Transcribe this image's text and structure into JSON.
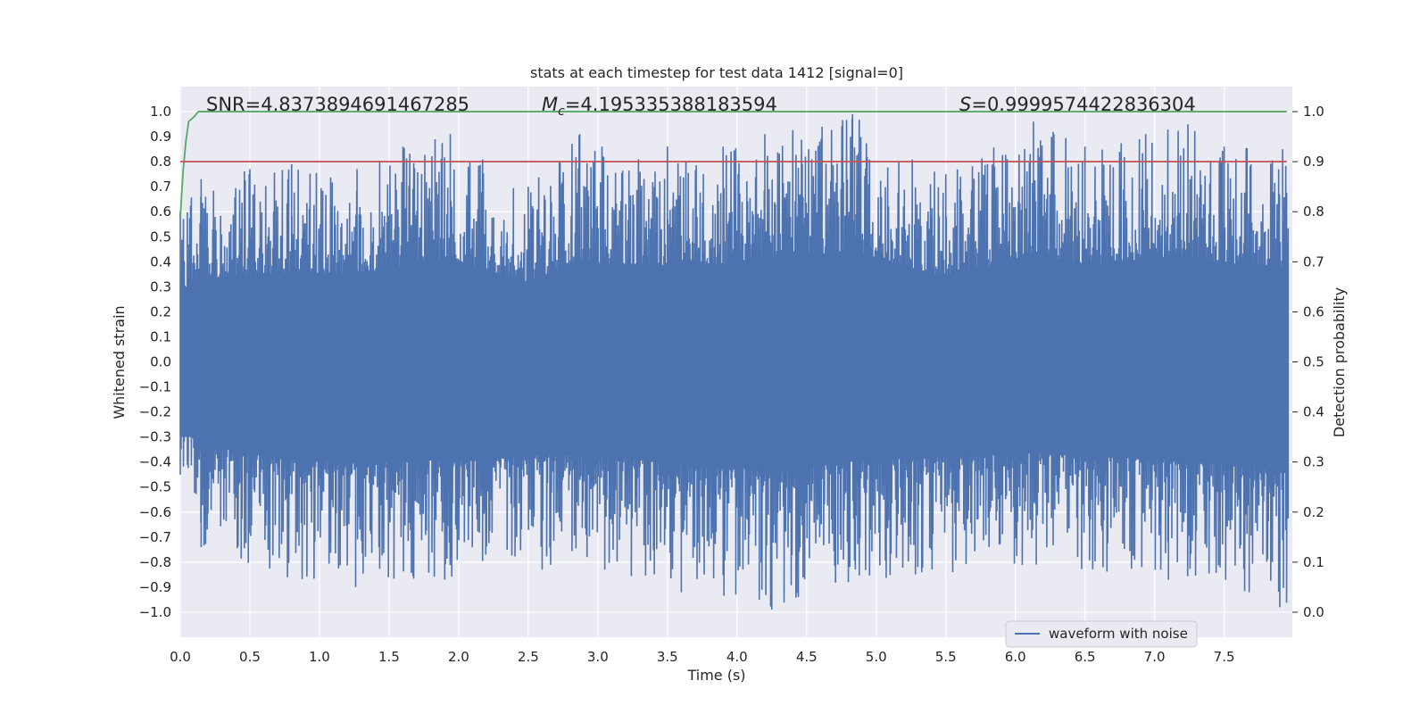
{
  "chart_data": {
    "type": "line",
    "title": "stats at each timestep for test data 1412 [signal=0]",
    "xlabel": "Time (s)",
    "ylabel_left": "Whitened strain",
    "ylabel_right": "Detection probability",
    "xlim": [
      0.0,
      7.99
    ],
    "ylim_left": [
      -1.1,
      1.1
    ],
    "ylim_right": [
      -0.05,
      1.05
    ],
    "xticks": [
      0.0,
      0.5,
      1.0,
      1.5,
      2.0,
      2.5,
      3.0,
      3.5,
      4.0,
      4.5,
      5.0,
      5.5,
      6.0,
      6.5,
      7.0,
      7.5
    ],
    "xtick_labels": [
      "0.0",
      "0.5",
      "1.0",
      "1.5",
      "2.0",
      "2.5",
      "3.0",
      "3.5",
      "4.0",
      "4.5",
      "5.0",
      "5.5",
      "6.0",
      "6.5",
      "7.0",
      "7.5"
    ],
    "yticks_left": [
      1.0,
      0.9,
      0.8,
      0.7,
      0.6,
      0.5,
      0.4,
      0.3,
      0.2,
      0.1,
      0.0,
      -0.1,
      -0.2,
      -0.3,
      -0.4,
      -0.5,
      -0.6,
      -0.7,
      -0.8,
      -0.9,
      -1.0
    ],
    "ytick_labels_left": [
      "1.0",
      "0.9",
      "0.8",
      "0.7",
      "0.6",
      "0.5",
      "0.4",
      "0.3",
      "0.2",
      "0.1",
      "0.0",
      "−0.1",
      "−0.2",
      "−0.3",
      "−0.4",
      "−0.5",
      "−0.6",
      "−0.7",
      "−0.8",
      "−0.9",
      "−1.0"
    ],
    "yticks_right": [
      1.0,
      0.9,
      0.8,
      0.7,
      0.6,
      0.5,
      0.4,
      0.3,
      0.2,
      0.1,
      0.0
    ],
    "ytick_labels_right": [
      "1.0",
      "0.9",
      "0.8",
      "0.7",
      "0.6",
      "0.5",
      "0.4",
      "0.3",
      "0.2",
      "0.1",
      "0.0"
    ],
    "annotations": {
      "snr": "SNR=4.8373894691467285",
      "mc_symbol": "M",
      "mc_subscript": "c",
      "mc_value": "=4.195335388183594",
      "s_symbol": "S",
      "s_value": "=0.9999574422836304"
    },
    "legend": {
      "label": "waveform with noise",
      "placement": "lower-right"
    },
    "series": [
      {
        "name": "waveform with noise",
        "axis": "left",
        "color": "#4c72b0",
        "kind": "noise",
        "envelope_pos": [
          [
            0.0,
            0.6
          ],
          [
            0.15,
            0.73
          ],
          [
            0.5,
            0.77
          ],
          [
            0.8,
            0.79
          ],
          [
            1.27,
            0.77
          ],
          [
            1.6,
            0.86
          ],
          [
            1.94,
            0.91
          ],
          [
            2.5,
            0.7
          ],
          [
            2.87,
            0.91
          ],
          [
            3.03,
            0.86
          ],
          [
            3.5,
            0.86
          ],
          [
            3.9,
            0.86
          ],
          [
            4.2,
            0.91
          ],
          [
            4.83,
            0.99
          ],
          [
            5.5,
            0.75
          ],
          [
            6.13,
            0.96
          ],
          [
            6.5,
            0.86
          ],
          [
            7.24,
            0.95
          ],
          [
            7.5,
            0.86
          ],
          [
            7.92,
            0.85
          ]
        ],
        "envelope_neg": [
          [
            0.0,
            -0.45
          ],
          [
            0.15,
            -0.74
          ],
          [
            0.77,
            -0.86
          ],
          [
            1.26,
            -0.9
          ],
          [
            1.9,
            -0.87
          ],
          [
            2.6,
            -0.83
          ],
          [
            3.05,
            -0.83
          ],
          [
            3.6,
            -0.92
          ],
          [
            4.16,
            -0.95
          ],
          [
            4.25,
            -0.99
          ],
          [
            4.8,
            -0.88
          ],
          [
            5.55,
            -0.84
          ],
          [
            6.15,
            -0.81
          ],
          [
            7.1,
            -0.87
          ],
          [
            7.68,
            -0.92
          ],
          [
            7.9,
            -0.98
          ]
        ]
      },
      {
        "name": "detection probability",
        "axis": "right",
        "color": "#55a868",
        "x": [
          0.0,
          0.02,
          0.04,
          0.06,
          0.1,
          0.13,
          0.2,
          1.0,
          3.0,
          5.0,
          7.0,
          7.95
        ],
        "values": [
          0.79,
          0.88,
          0.94,
          0.98,
          0.99,
          1.0,
          1.0,
          1.0,
          1.0,
          1.0,
          1.0,
          1.0
        ]
      },
      {
        "name": "threshold",
        "axis": "right",
        "color": "#c44e52",
        "x": [
          0.0,
          7.95
        ],
        "values": [
          0.9,
          0.9
        ]
      }
    ]
  }
}
